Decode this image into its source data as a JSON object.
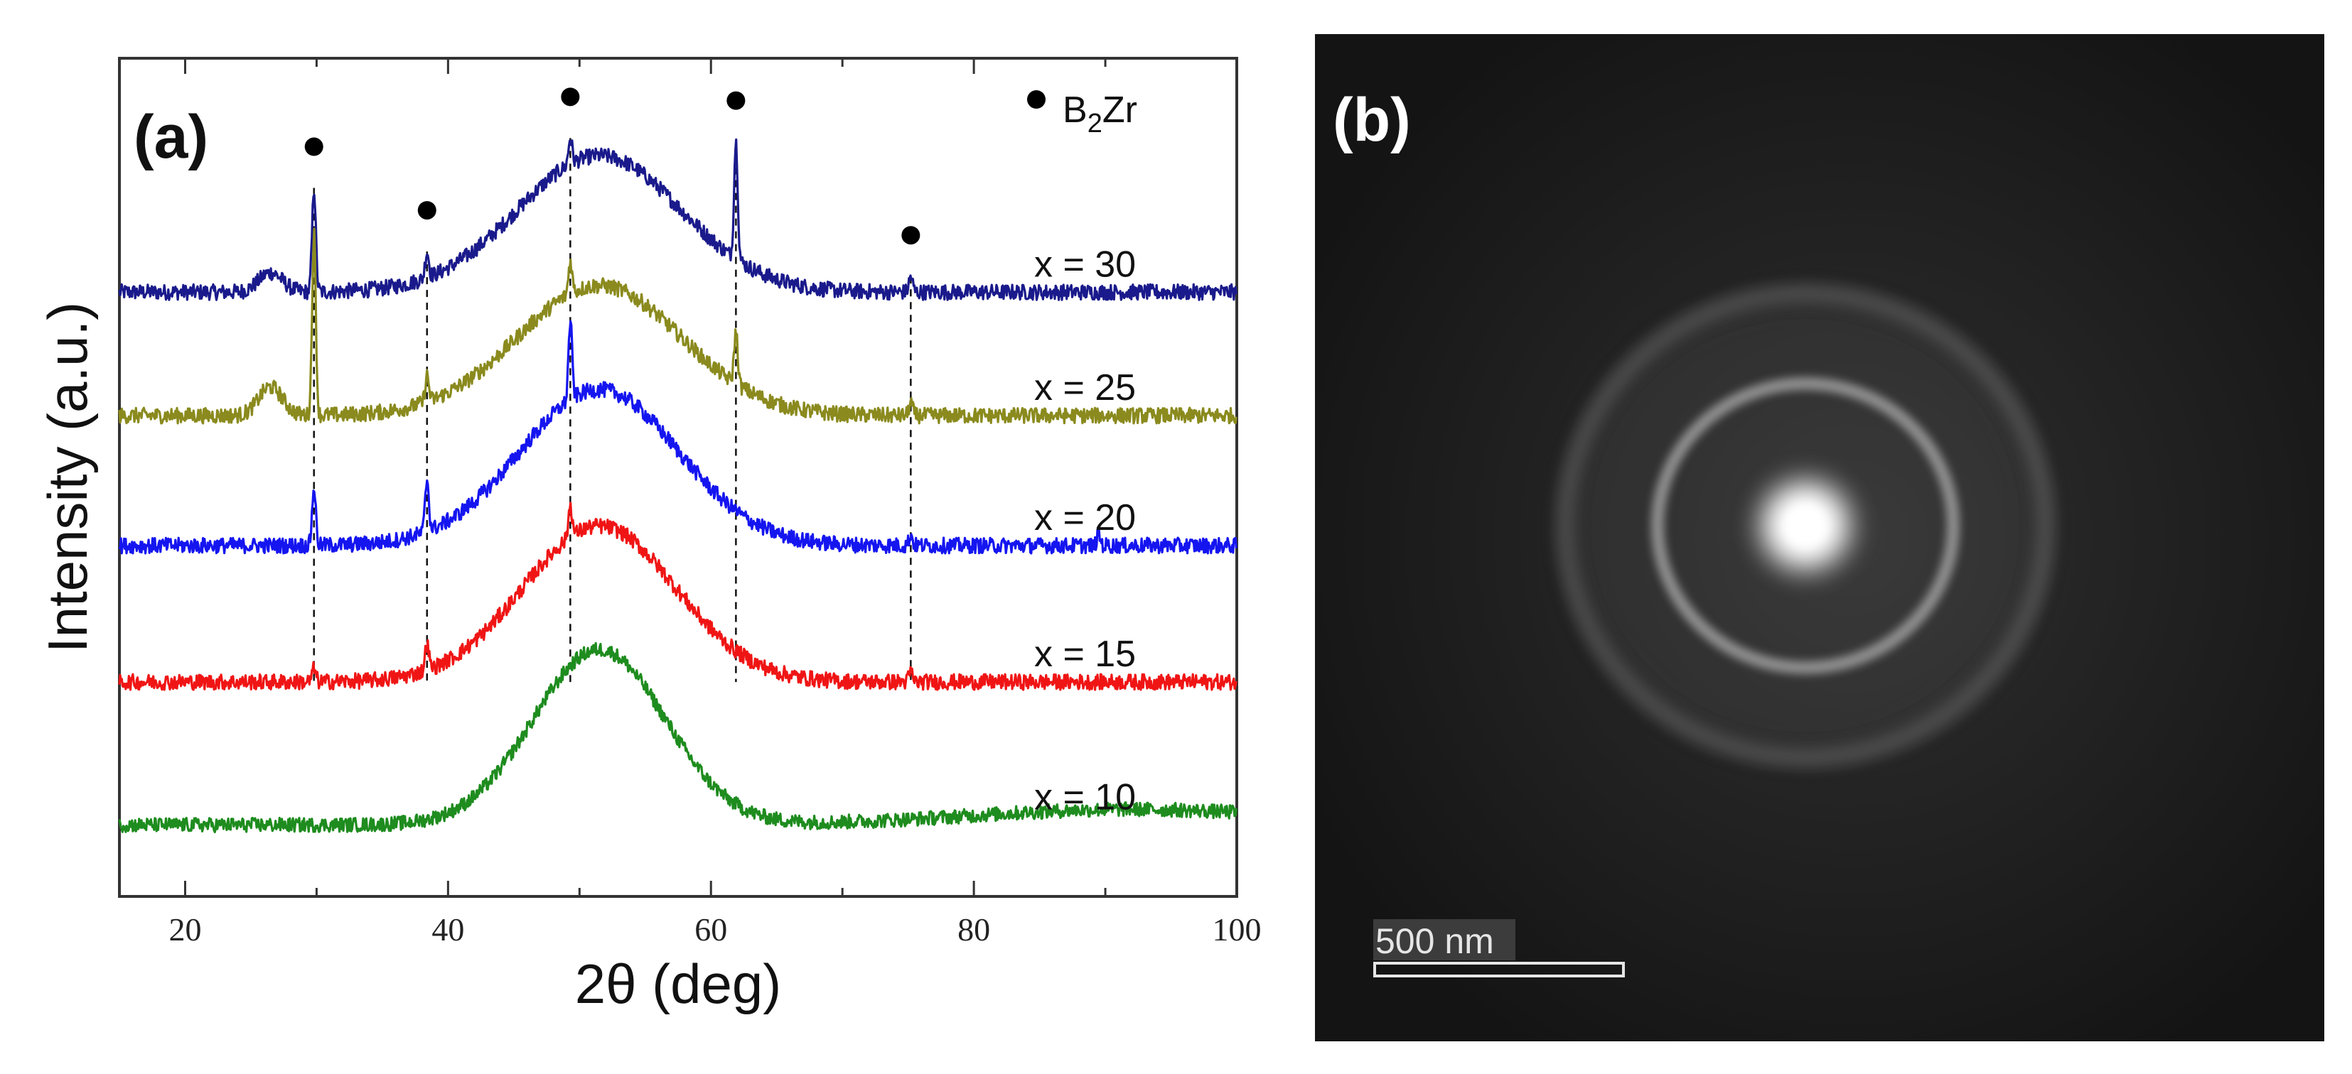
{
  "chart_data": [
    {
      "type": "line",
      "panel_label": "(a)",
      "xlabel": "2θ (deg)",
      "ylabel": "Intensity (a.u.)",
      "xlim": [
        15,
        100
      ],
      "xticks": [
        20,
        40,
        60,
        80,
        100
      ],
      "grid": false,
      "legend": {
        "symbol": "filled-circle",
        "text_main": "B",
        "text_sub": "2",
        "text_end": "Zr",
        "label": "B2Zr",
        "placement": "top-right"
      },
      "reference_peaks": [
        {
          "x": 29.8,
          "marker_above": "x = 30"
        },
        {
          "x": 38.4,
          "marker_above": "x = 30"
        },
        {
          "x": 49.3,
          "marker_above": "x = 30"
        },
        {
          "x": 61.9,
          "marker_above": "x = 30"
        },
        {
          "x": 75.2,
          "marker_above": "x = 30"
        }
      ],
      "series": [
        {
          "name": "x = 30",
          "color": "#1a1a8c",
          "baseline": 4.1,
          "hump": {
            "center": 51.5,
            "height": 1.05,
            "width": 6.2
          },
          "noise": 0.06,
          "peaks": [
            {
              "x": 29.8,
              "h": 0.8
            },
            {
              "x": 38.4,
              "h": 0.2
            },
            {
              "x": 49.3,
              "h": 0.2
            },
            {
              "x": 61.9,
              "h": 0.9
            },
            {
              "x": 75.2,
              "h": 0.12
            },
            {
              "x": 26.5,
              "h": 0.15,
              "w": 0.9
            }
          ]
        },
        {
          "name": "x = 25",
          "color": "#8a8a1e",
          "baseline": 3.15,
          "hump": {
            "center": 51.5,
            "height": 1.0,
            "width": 6.2
          },
          "noise": 0.06,
          "peaks": [
            {
              "x": 29.8,
              "h": 1.4
            },
            {
              "x": 38.4,
              "h": 0.2
            },
            {
              "x": 49.3,
              "h": 0.25
            },
            {
              "x": 61.9,
              "h": 0.4
            },
            {
              "x": 75.2,
              "h": 0.1
            },
            {
              "x": 26.5,
              "h": 0.22,
              "w": 0.9
            }
          ]
        },
        {
          "name": "x = 20",
          "color": "#1515f0",
          "baseline": 2.15,
          "hump": {
            "center": 51.5,
            "height": 1.2,
            "width": 6.0
          },
          "noise": 0.06,
          "peaks": [
            {
              "x": 29.8,
              "h": 0.45
            },
            {
              "x": 38.4,
              "h": 0.4
            },
            {
              "x": 49.3,
              "h": 0.6
            },
            {
              "x": 75.2,
              "h": 0.08
            },
            {
              "x": 89.5,
              "h": 0.08
            }
          ]
        },
        {
          "name": "x = 15",
          "color": "#f01515",
          "baseline": 1.1,
          "hump": {
            "center": 51.5,
            "height": 1.2,
            "width": 5.8
          },
          "noise": 0.06,
          "peaks": [
            {
              "x": 29.8,
              "h": 0.1
            },
            {
              "x": 38.4,
              "h": 0.2
            },
            {
              "x": 49.3,
              "h": 0.25
            },
            {
              "x": 75.2,
              "h": 0.08
            }
          ]
        },
        {
          "name": "x = 10",
          "color": "#1e8c1e",
          "baseline": 0.0,
          "hump": {
            "center": 51.5,
            "height": 1.35,
            "width": 5.0
          },
          "noise": 0.055,
          "peaks": [],
          "tail": {
            "center": 92,
            "height": 0.12,
            "width": 12
          }
        }
      ]
    },
    {
      "type": "image",
      "panel_label": "(b)",
      "description_kind": "diffraction-pattern",
      "scale_bar": {
        "label": "500 nm"
      }
    }
  ]
}
